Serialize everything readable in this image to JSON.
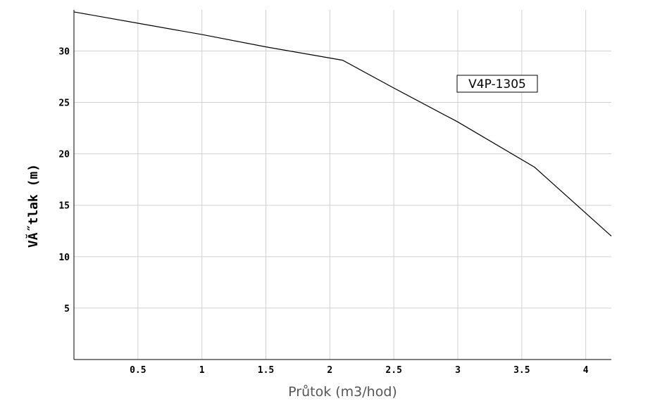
{
  "chart_data": {
    "type": "line",
    "xlabel": "Průtok (m3/hod)",
    "ylabel": "VĂ˝tlak (m)",
    "xlim": [
      0,
      4.2
    ],
    "ylim": [
      0,
      34
    ],
    "grid": true,
    "legend_position": "top-right",
    "x_ticks": [
      0.5,
      1,
      1.5,
      2,
      2.5,
      3,
      3.5,
      4
    ],
    "x_tick_labels": [
      "0.5",
      "1",
      "1.5",
      "2",
      "2.5",
      "3",
      "3.5",
      "4"
    ],
    "y_ticks": [
      5,
      10,
      15,
      20,
      25,
      30
    ],
    "y_tick_labels": [
      "5",
      "10",
      "15",
      "20",
      "25",
      "30"
    ],
    "series": [
      {
        "name": "V4P-1305",
        "color": "#000000",
        "x": [
          0,
          0.5,
          1,
          1.5,
          2.1,
          2.5,
          3,
          3.6,
          4.2
        ],
        "y": [
          33.8,
          32.7,
          31.6,
          30.4,
          29.1,
          26.4,
          23.1,
          18.7,
          12
        ]
      }
    ]
  }
}
